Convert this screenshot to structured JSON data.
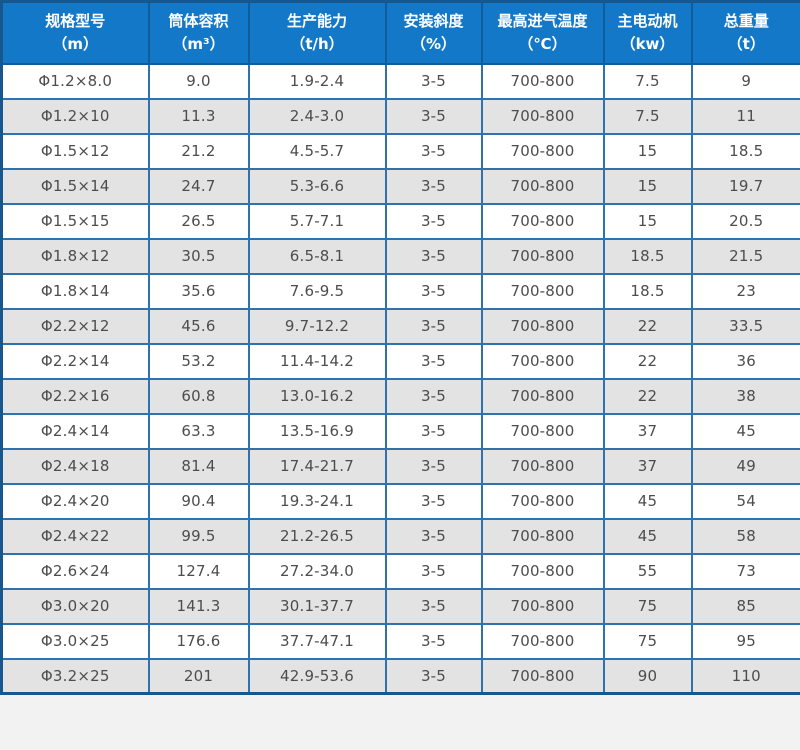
{
  "table": {
    "columns": [
      {
        "title": "规格型号",
        "unit": "（m）"
      },
      {
        "title": "筒体容积",
        "unit": "（m³）"
      },
      {
        "title": "生产能力",
        "unit": "（t/h）"
      },
      {
        "title": "安装斜度",
        "unit": "（%）"
      },
      {
        "title": "最高进气温度",
        "unit": "（℃）"
      },
      {
        "title": "主电动机",
        "unit": "（kw）"
      },
      {
        "title": "总重量",
        "unit": "（t）"
      }
    ],
    "rows": [
      [
        "Φ1.2×8.0",
        "9.0",
        "1.9-2.4",
        "3-5",
        "700-800",
        "7.5",
        "9"
      ],
      [
        "Φ1.2×10",
        "11.3",
        "2.4-3.0",
        "3-5",
        "700-800",
        "7.5",
        "11"
      ],
      [
        "Φ1.5×12",
        "21.2",
        "4.5-5.7",
        "3-5",
        "700-800",
        "15",
        "18.5"
      ],
      [
        "Φ1.5×14",
        "24.7",
        "5.3-6.6",
        "3-5",
        "700-800",
        "15",
        "19.7"
      ],
      [
        "Φ1.5×15",
        "26.5",
        "5.7-7.1",
        "3-5",
        "700-800",
        "15",
        "20.5"
      ],
      [
        "Φ1.8×12",
        "30.5",
        "6.5-8.1",
        "3-5",
        "700-800",
        "18.5",
        "21.5"
      ],
      [
        "Φ1.8×14",
        "35.6",
        "7.6-9.5",
        "3-5",
        "700-800",
        "18.5",
        "23"
      ],
      [
        "Φ2.2×12",
        "45.6",
        "9.7-12.2",
        "3-5",
        "700-800",
        "22",
        "33.5"
      ],
      [
        "Φ2.2×14",
        "53.2",
        "11.4-14.2",
        "3-5",
        "700-800",
        "22",
        "36"
      ],
      [
        "Φ2.2×16",
        "60.8",
        "13.0-16.2",
        "3-5",
        "700-800",
        "22",
        "38"
      ],
      [
        "Φ2.4×14",
        "63.3",
        "13.5-16.9",
        "3-5",
        "700-800",
        "37",
        "45"
      ],
      [
        "Φ2.4×18",
        "81.4",
        "17.4-21.7",
        "3-5",
        "700-800",
        "37",
        "49"
      ],
      [
        "Φ2.4×20",
        "90.4",
        "19.3-24.1",
        "3-5",
        "700-800",
        "45",
        "54"
      ],
      [
        "Φ2.4×22",
        "99.5",
        "21.2-26.5",
        "3-5",
        "700-800",
        "45",
        "58"
      ],
      [
        "Φ2.6×24",
        "127.4",
        "27.2-34.0",
        "3-5",
        "700-800",
        "55",
        "73"
      ],
      [
        "Φ3.0×20",
        "141.3",
        "30.1-37.7",
        "3-5",
        "700-800",
        "75",
        "85"
      ],
      [
        "Φ3.0×25",
        "176.6",
        "37.7-47.1",
        "3-5",
        "700-800",
        "75",
        "95"
      ],
      [
        "Φ3.2×25",
        "201",
        "42.9-53.6",
        "3-5",
        "700-800",
        "90",
        "110"
      ]
    ]
  },
  "colors": {
    "header_bg": "#1478c8",
    "header_text": "#ffffff",
    "outer_border": "#17578e",
    "inner_border": "#2e73ae",
    "stripe_gray": "#e3e3e3",
    "cell_text": "#4d4d4d"
  }
}
